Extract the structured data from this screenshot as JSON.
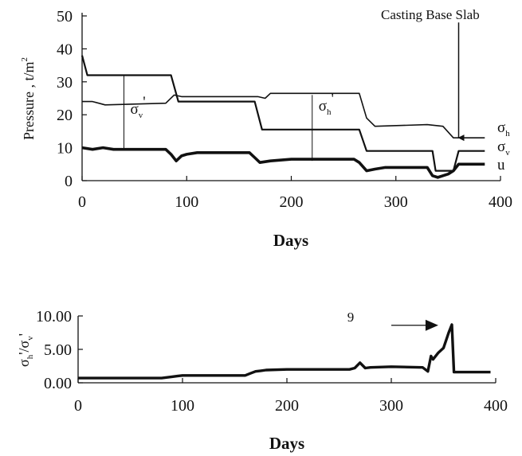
{
  "chart_data": [
    {
      "type": "line",
      "title": "",
      "xlabel": "Days",
      "ylabel": "Pressure , t/m2",
      "ylabel_parts": {
        "main": "Pressure , t/m",
        "sup": "2"
      },
      "xlim": [
        0,
        400
      ],
      "ylim": [
        0,
        50
      ],
      "xticks": [
        "0",
        "100",
        "200",
        "300",
        "400"
      ],
      "yticks": [
        "0",
        "10",
        "20",
        "30",
        "40",
        "50"
      ],
      "grid": false,
      "legend": "none",
      "annotation": "Casting Base Slab",
      "series": [
        {
          "symbol": "σ",
          "subscript": "h",
          "stroke_width": 1.6,
          "x": [
            0,
            10,
            22,
            80,
            88,
            95,
            162,
            168,
            175,
            180,
            265,
            272,
            280,
            330,
            345,
            355,
            385
          ],
          "y": [
            24,
            24,
            23,
            23.5,
            26,
            25.5,
            25.5,
            25.5,
            25,
            26.5,
            26.5,
            19,
            16.5,
            17,
            16.5,
            13,
            13
          ]
        },
        {
          "symbol": "σ",
          "subscript": "v",
          "stroke_width": 2.2,
          "x": [
            0,
            5,
            85,
            92,
            165,
            172,
            265,
            272,
            335,
            338,
            355,
            360,
            385
          ],
          "y": [
            38,
            32,
            32,
            24,
            24,
            15.5,
            15.5,
            9,
            9,
            3,
            3,
            9,
            9
          ]
        },
        {
          "symbol": "u",
          "subscript": "",
          "stroke_width": 3.6,
          "x": [
            0,
            10,
            20,
            30,
            50,
            80,
            85,
            90,
            95,
            100,
            110,
            160,
            165,
            170,
            180,
            200,
            260,
            265,
            272,
            280,
            290,
            330,
            335,
            340,
            345,
            350,
            355,
            360,
            385
          ],
          "y": [
            10,
            9.5,
            10,
            9.5,
            9.5,
            9.5,
            8,
            6,
            7.5,
            8,
            8.5,
            8.5,
            7,
            5.5,
            6,
            6.5,
            6.5,
            5.5,
            3,
            3.5,
            4,
            4,
            1.5,
            1,
            1.5,
            2,
            3,
            5,
            5
          ]
        }
      ],
      "annotations": [
        {
          "symbol": "σ",
          "subscript": "v",
          "prime": "'",
          "x": 40,
          "y_range": [
            9.5,
            32
          ],
          "label_y": 22
        },
        {
          "symbol": "σ",
          "subscript": "h",
          "prime": "'",
          "x": 220,
          "y_range": [
            6,
            26
          ],
          "label_y": 23
        }
      ],
      "arrow": {
        "x": 360,
        "y_from": 48,
        "y_to": 13
      }
    },
    {
      "type": "line",
      "title": "",
      "xlabel": "Days",
      "ylabel": "σh'/σv'",
      "ylabel_parts": {
        "num": "σ",
        "num_sub": "h",
        "den": "σ",
        "den_sub": "v",
        "prime": "'"
      },
      "xlim": [
        0,
        400
      ],
      "ylim": [
        0,
        10
      ],
      "xticks": [
        "0",
        "100",
        "200",
        "300",
        "400"
      ],
      "yticks": [
        "0.00",
        "5.00",
        "10.00"
      ],
      "grid": false,
      "legend": "none",
      "annotation": "9",
      "series": [
        {
          "x": [
            0,
            20,
            80,
            90,
            95,
            100,
            160,
            165,
            170,
            175,
            180,
            200,
            260,
            265,
            270,
            275,
            280,
            300,
            330,
            335,
            338,
            340,
            345,
            350,
            355,
            358,
            360,
            370,
            395
          ],
          "y": [
            0.7,
            0.7,
            0.7,
            0.9,
            1.0,
            1.1,
            1.1,
            1.4,
            1.7,
            1.8,
            1.9,
            2.0,
            2.0,
            2.2,
            3.0,
            2.2,
            2.3,
            2.4,
            2.3,
            1.7,
            4.0,
            3.5,
            4.5,
            5.2,
            7.5,
            8.7,
            1.6,
            1.6,
            1.6
          ]
        }
      ],
      "arrow": {
        "x_from": 300,
        "x_to": 345,
        "y": 8.6
      }
    }
  ]
}
